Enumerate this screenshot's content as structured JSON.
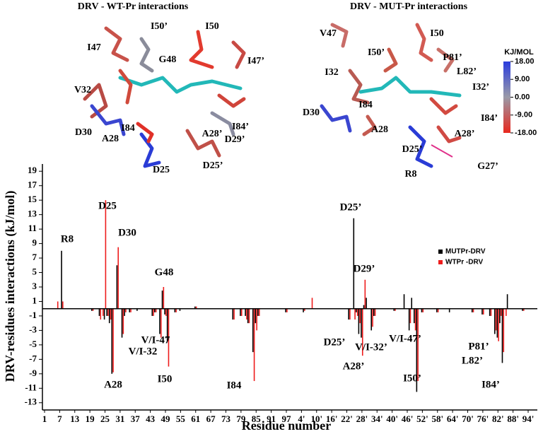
{
  "structures": [
    {
      "title": "DRV - WT-Pr  interactions",
      "labels": [
        "I50’",
        "I50",
        "I47",
        "G48",
        "I47’",
        "V32",
        "I84’",
        "D30",
        "I84",
        "A28",
        "A28’",
        "D29’",
        "D25’",
        "D25"
      ]
    },
    {
      "title": "DRV - MUT-Pr  interactions",
      "labels": [
        "V47",
        "I50",
        "I50’",
        "P81’",
        "I32",
        "L82’",
        "I32’",
        "I84",
        "D30",
        "I84’",
        "A28",
        "A28’",
        "D25’",
        "G27’",
        "R8"
      ]
    }
  ],
  "colorbar": {
    "title": "KJ/MOL",
    "ticks": [
      {
        "value": 18,
        "label": "18.00"
      },
      {
        "value": 9,
        "label": "9.00"
      },
      {
        "value": 0,
        "label": "0.00"
      },
      {
        "value": -9,
        "label": "-9.00"
      },
      {
        "value": -18,
        "label": "-18.00"
      }
    ],
    "lim": [
      -18,
      18
    ],
    "colors": [
      "#e8281e",
      "#9a9aa8",
      "#2a3cde"
    ]
  },
  "chart_data": {
    "type": "bar",
    "y_label": "DRV-residues interactions (kJ/mol)",
    "x_label": "Residue number",
    "categories": [
      "1",
      null,
      null,
      null,
      null,
      null,
      "7",
      null,
      null,
      null,
      null,
      null,
      "13",
      null,
      null,
      null,
      null,
      null,
      "19",
      null,
      null,
      null,
      null,
      null,
      "25",
      null,
      null,
      null,
      null,
      null,
      "31",
      null,
      null,
      null,
      null,
      null,
      "37",
      null,
      null,
      null,
      null,
      null,
      "43",
      null,
      null,
      null,
      null,
      null,
      "49",
      null,
      null,
      null,
      null,
      null,
      "55",
      null,
      null,
      null,
      null,
      null,
      "61",
      null,
      null,
      null,
      null,
      null,
      "67",
      null,
      null,
      null,
      null,
      null,
      "73",
      null,
      null,
      null,
      null,
      null,
      "79",
      null,
      null,
      null,
      null,
      null,
      "85",
      null,
      null,
      null,
      null,
      null,
      "91",
      null,
      null,
      null,
      null,
      null,
      "97",
      null,
      null,
      null,
      null,
      null,
      "4'",
      null,
      null,
      null,
      null,
      null,
      "10'",
      null,
      null,
      null,
      null,
      null,
      "16'",
      null,
      null,
      null,
      null,
      null,
      "22'",
      null,
      null,
      null,
      null,
      null,
      "28'",
      null,
      null,
      null,
      null,
      null,
      "34'",
      null,
      null,
      null,
      null,
      null,
      "40'",
      null,
      null,
      null,
      null,
      null,
      "46'",
      null,
      null,
      null,
      null,
      null,
      "52'",
      null,
      null,
      null,
      null,
      null,
      "58'",
      null,
      null,
      null,
      null,
      null,
      "64'",
      null,
      null,
      null,
      null,
      null,
      "70'",
      null,
      null,
      null,
      null,
      null,
      "76'",
      null,
      null,
      null,
      null,
      null,
      "82'",
      null,
      null,
      null,
      null,
      null,
      "88'",
      null,
      null,
      null,
      null,
      null,
      "94'",
      null,
      null,
      null,
      null,
      null
    ],
    "series": [
      {
        "name": "MUTPr-DRV",
        "color": "#000000",
        "values": [
          0,
          0,
          0,
          0,
          0,
          0,
          0,
          8,
          0,
          0,
          0,
          0,
          0,
          0,
          0,
          0,
          0,
          0,
          0,
          -0.3,
          0,
          0,
          -1,
          0,
          -1.5,
          -1,
          -2,
          -9,
          0,
          6,
          0,
          -4,
          -1,
          0,
          -0.5,
          0,
          0,
          -0.3,
          0,
          0,
          0,
          0,
          0,
          -1,
          -0.5,
          0,
          -3.5,
          2.5,
          -0.8,
          -4.5,
          0,
          0,
          -0.5,
          0,
          -0.3,
          0,
          0,
          0,
          0,
          0,
          0.3,
          0,
          0,
          0,
          0,
          0,
          0,
          0,
          0,
          0,
          0,
          0,
          0,
          0,
          0,
          -1.5,
          0,
          0,
          -1,
          0,
          -1,
          -2,
          0,
          -6,
          -2,
          -1,
          0,
          0,
          0,
          0,
          0,
          0,
          0,
          0,
          0,
          0,
          -0.5,
          0,
          0,
          0,
          0,
          0,
          0,
          -0.5,
          0,
          0,
          0,
          0,
          0,
          0,
          0,
          0,
          0,
          0,
          0,
          0,
          0,
          0,
          0,
          0,
          0,
          -1.5,
          0,
          12.5,
          -0.5,
          -3.5,
          -4,
          0.5,
          1.5,
          0,
          -3,
          -1,
          0,
          0,
          0,
          0,
          0,
          0,
          0,
          -0.3,
          0,
          0,
          0,
          2,
          0,
          -3,
          1.5,
          -2,
          -11.5,
          0,
          -0.5,
          0,
          0,
          0,
          0,
          0,
          -0.5,
          0,
          0,
          0,
          0,
          -0.5,
          0,
          0,
          0,
          0,
          0,
          0,
          0,
          0,
          -0.5,
          0,
          0,
          0,
          -0.8,
          0,
          0,
          -1,
          0,
          -3.5,
          -4,
          -2,
          -7.5,
          0,
          2,
          0,
          0,
          0,
          0,
          0,
          -0.3,
          0,
          0,
          0,
          0,
          0,
          0,
          0
        ]
      },
      {
        "name": "WTPr -DRV",
        "color": "#ee1c1c",
        "values": [
          0,
          0,
          0,
          0,
          0,
          1,
          0,
          1,
          0,
          0,
          0,
          0,
          0,
          0,
          0,
          0,
          0,
          0,
          0,
          -0.3,
          0,
          0,
          -1.5,
          -1,
          15,
          -1,
          -1.5,
          -8.8,
          0,
          8.5,
          0,
          -3.5,
          -0.5,
          0,
          -0.5,
          0,
          0,
          0,
          0,
          0,
          0,
          0,
          0,
          -1,
          -0.5,
          0,
          -4,
          3,
          -1,
          -8,
          0,
          0,
          -0.5,
          0,
          0,
          0,
          0,
          0,
          0,
          0,
          0.3,
          0,
          0,
          0,
          0,
          0,
          0,
          0,
          0,
          0,
          0,
          0,
          0,
          0,
          0,
          -1.5,
          0,
          0,
          -1,
          0,
          -1.5,
          -2,
          0,
          -10,
          -3,
          -1,
          0,
          0,
          0,
          0,
          0,
          0,
          0,
          0,
          0,
          0,
          -0.5,
          0,
          0,
          0,
          0,
          0,
          0,
          -0.3,
          0,
          0,
          1.5,
          0,
          0,
          0,
          0,
          0,
          0,
          0,
          0,
          0,
          0,
          0,
          0,
          0,
          0,
          -1.5,
          0,
          -1.5,
          -1,
          -2,
          -6.5,
          4,
          0,
          0,
          -2.5,
          -1,
          0,
          0,
          0,
          0,
          0,
          0,
          0,
          -0.3,
          0,
          0,
          0,
          0,
          0,
          -2,
          0,
          -3,
          -10,
          0,
          -0.5,
          0,
          0,
          0,
          0,
          0,
          -0.5,
          0,
          0,
          0,
          0,
          0,
          0,
          0,
          0,
          0,
          0,
          0,
          0,
          0,
          -0.5,
          0,
          0,
          0,
          -0.8,
          0,
          0,
          -1,
          0,
          -3,
          -4.5,
          -1,
          -6,
          -1,
          0,
          0,
          0,
          0,
          0,
          0,
          -0.3,
          0,
          0,
          0,
          0,
          0,
          0,
          0
        ]
      }
    ],
    "ylim": [
      -14,
      20
    ],
    "yticks": [
      19,
      17,
      15,
      13,
      11,
      9,
      7,
      5,
      3,
      1,
      -1,
      -3,
      -5,
      -7,
      -9,
      -11,
      -13
    ],
    "annotations": [
      "R8",
      "D25",
      "D30",
      "G48",
      "V/I-47",
      "V/I-32",
      "A28",
      "I50",
      "I84",
      "D25’",
      "D29’",
      "D25’",
      "V/I-47’",
      "V/I-32’",
      "A28’",
      "I50’",
      "P81’",
      "L82’",
      "I84’"
    ],
    "legend": "right"
  }
}
